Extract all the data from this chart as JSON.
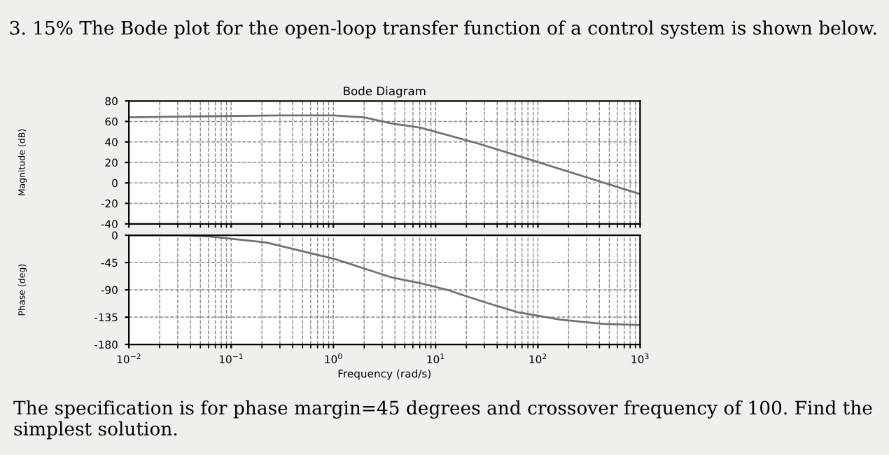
{
  "chart_data": [
    {
      "type": "line",
      "title": "Bode Diagram",
      "ylabel": "Magnitude (dB)",
      "annotations": [
        "3. 15% The Bode plot for the open-loop transfer function of a control system is shown below."
      ],
      "series": [
        {
          "color": "#707070",
          "x": [
            0.01,
            0.05,
            0.3,
            1.0,
            2.0,
            3.7,
            7.1,
            25,
            89,
            310,
            1000
          ],
          "values": [
            64,
            65,
            66,
            66,
            64,
            58,
            54,
            39,
            22,
            5,
            -11
          ]
        }
      ],
      "xlim": [
        0.01,
        1000
      ],
      "xticks": [
        {
          "value": 0.01,
          "label": null
        },
        {
          "value": 0.1,
          "label": null
        },
        {
          "value": 1,
          "label": null
        },
        {
          "value": 10,
          "label": null
        },
        {
          "value": 100,
          "label": null
        },
        {
          "value": 1000,
          "label": null
        }
      ],
      "ylim": [
        -40,
        80
      ],
      "yticks": [
        -40,
        -20,
        0,
        20,
        40,
        60,
        80
      ],
      "log": "x",
      "grid": true,
      "tick_labels": "y",
      "line_style": "solid",
      "marker": "none"
    },
    {
      "type": "line",
      "xlabel": "Frequency (rad/s)",
      "ylabel": "Phase (deg)",
      "annotations": [
        "The specification is for phase margin=45 degrees and crossover frequency of 100. Find the simplest solution."
      ],
      "series": [
        {
          "color": "#707070",
          "x": [
            0.01,
            0.03,
            0.062,
            0.22,
            1.07,
            3.8,
            7.1,
            13,
            18,
            34,
            64,
            166,
            427,
            1000
          ],
          "values": [
            0,
            0,
            -2,
            -12,
            -40,
            -70,
            -79,
            -90,
            -98,
            -113,
            -127,
            -139,
            -146,
            -148
          ]
        }
      ],
      "xlim": [
        0.01,
        1000
      ],
      "xticks": [
        {
          "value": 0.01,
          "label": "10$^{−2}$"
        },
        {
          "value": 0.1,
          "label": "10$^{−1}$"
        },
        {
          "value": 1,
          "label": "10$^{0}$"
        },
        {
          "value": 10,
          "label": "10$^{1}$"
        },
        {
          "value": 100,
          "label": "10$^{2}$"
        },
        {
          "value": 1000,
          "label": "10$^{3}$"
        }
      ],
      "ylim": [
        -180,
        0
      ],
      "yticks": [
        -180,
        -135,
        -90,
        -45,
        0
      ],
      "log": "x",
      "grid": true,
      "line_style": "solid",
      "marker": "none"
    }
  ]
}
